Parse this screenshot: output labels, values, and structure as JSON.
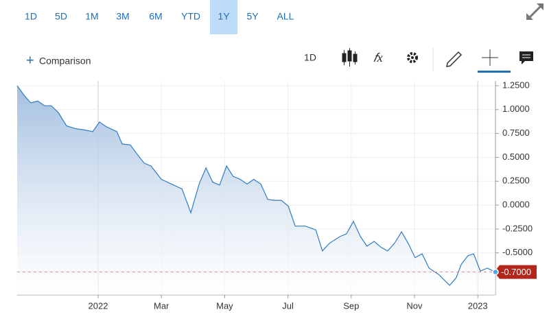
{
  "toolbar": {
    "ranges": [
      "1D",
      "5D",
      "1M",
      "3M",
      "6M",
      "YTD",
      "1Y",
      "5Y",
      "ALL"
    ],
    "selected": 6,
    "comparison": "Comparison",
    "interval": "1D"
  },
  "chart_data": {
    "type": "line",
    "color": "#2f7ac2",
    "grid": true,
    "x": [
      -2.56,
      -2.34,
      -2.13,
      -1.91,
      -1.69,
      -1.48,
      -1.26,
      -1.0,
      -0.72,
      -0.5,
      -0.17,
      0.04,
      0.26,
      0.59,
      0.76,
      1.02,
      1.24,
      1.45,
      1.67,
      2.0,
      2.32,
      2.65,
      2.93,
      3.19,
      3.41,
      3.62,
      3.84,
      4.06,
      4.27,
      4.49,
      4.71,
      4.92,
      5.14,
      5.36,
      5.57,
      5.79,
      6.01,
      6.23,
      6.55,
      6.88,
      7.09,
      7.31,
      7.64,
      7.85,
      8.07,
      8.29,
      8.5,
      8.72,
      8.94,
      9.15,
      9.37,
      9.59,
      9.8,
      10.02,
      10.24,
      10.46,
      10.78,
      11.11,
      11.32,
      11.48,
      11.69,
      11.87,
      12.08,
      12.3,
      12.56
    ],
    "values": [
      1.25,
      1.15,
      1.07,
      1.09,
      1.04,
      1.04,
      0.97,
      0.83,
      0.8,
      0.79,
      0.77,
      0.87,
      0.82,
      0.77,
      0.64,
      0.63,
      0.53,
      0.44,
      0.41,
      0.27,
      0.22,
      0.17,
      -0.08,
      0.22,
      0.39,
      0.24,
      0.21,
      0.41,
      0.3,
      0.27,
      0.22,
      0.27,
      0.22,
      0.06,
      0.05,
      0.05,
      -0.01,
      -0.22,
      -0.22,
      -0.26,
      -0.48,
      -0.4,
      -0.33,
      -0.3,
      -0.17,
      -0.33,
      -0.43,
      -0.38,
      -0.44,
      -0.48,
      -0.4,
      -0.28,
      -0.4,
      -0.55,
      -0.51,
      -0.66,
      -0.73,
      -0.84,
      -0.76,
      -0.62,
      -0.53,
      -0.51,
      -0.69,
      -0.66,
      -0.7
    ],
    "xlim": [
      -2.56,
      12.56
    ],
    "xticks": [
      {
        "value": 0,
        "label": "2022"
      },
      {
        "value": 2,
        "label": "Mar"
      },
      {
        "value": 4,
        "label": "May"
      },
      {
        "value": 6,
        "label": "Jul"
      },
      {
        "value": 8,
        "label": "Sep"
      },
      {
        "value": 10,
        "label": "Nov"
      },
      {
        "value": 12,
        "label": "2023"
      }
    ],
    "ylim": [
      -0.94,
      1.3
    ],
    "yticks": [
      {
        "value": 1.25,
        "label": "1.2500"
      },
      {
        "value": 1,
        "label": "1.0000"
      },
      {
        "value": 0.75,
        "label": "0.7500"
      },
      {
        "value": 0.5,
        "label": "0.5000"
      },
      {
        "value": 0.25,
        "label": "0.2500"
      },
      {
        "value": 0,
        "label": "0.0000"
      },
      {
        "value": -0.25,
        "label": "-0.2500"
      },
      {
        "value": -0.5,
        "label": "-0.5000"
      }
    ],
    "last_value": {
      "value": -0.7,
      "label": "-0.7000"
    }
  }
}
